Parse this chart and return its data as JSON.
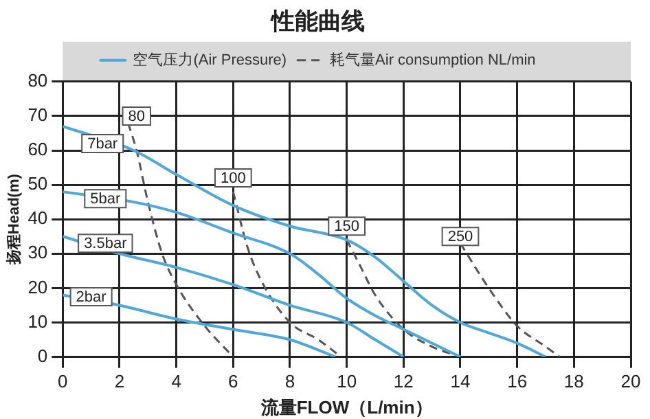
{
  "chart_data": {
    "type": "line",
    "title": "性能曲线",
    "xlabel": "流量FLOW（L/min）",
    "ylabel": "扬程Head(m)",
    "xlim": [
      0,
      20
    ],
    "xticks": [
      0,
      2,
      4,
      6,
      8,
      10,
      12,
      14,
      16,
      18,
      20
    ],
    "ylim": [
      0,
      80
    ],
    "yticks": [
      0,
      10,
      20,
      30,
      40,
      50,
      60,
      70,
      80
    ],
    "grid": true,
    "legend": "top",
    "marker": "none",
    "series": [
      {
        "name": "空气压力(Air Pressure)",
        "color": "#4fa8dc",
        "line_style": "solid",
        "x": [
          0,
          2.5,
          4,
          6,
          8,
          10,
          11,
          12,
          13,
          14,
          15,
          16,
          17
        ],
        "values": [
          67,
          60,
          53,
          44,
          38,
          34,
          29,
          22,
          15,
          10,
          7,
          4,
          0
        ]
      },
      {
        "color": "#4fa8dc",
        "line_style": "solid",
        "x": [
          0,
          2.5,
          4,
          6,
          8,
          9,
          10,
          11,
          12,
          13,
          14
        ],
        "values": [
          48,
          45,
          42,
          36,
          30,
          24,
          17,
          12,
          8,
          4,
          0
        ]
      },
      {
        "color": "#4fa8dc",
        "line_style": "solid",
        "x": [
          0,
          2,
          4,
          6,
          8,
          10,
          11,
          12
        ],
        "values": [
          35,
          30,
          26,
          21,
          15,
          10,
          5,
          0
        ]
      },
      {
        "color": "#4fa8dc",
        "line_style": "solid",
        "x": [
          0,
          2,
          4,
          6,
          8,
          9,
          9.6
        ],
        "values": [
          18,
          15,
          11,
          8,
          5,
          2,
          0
        ]
      },
      {
        "name": "耗气量Air consumption NL/min",
        "color": "#555555",
        "line_style": "dashed",
        "x": [
          2.3,
          2.6,
          3,
          3.5,
          4,
          5,
          6
        ],
        "values": [
          68,
          60,
          45,
          30,
          21,
          9,
          0
        ]
      },
      {
        "color": "#555555",
        "line_style": "dashed",
        "x": [
          6,
          6.5,
          7,
          8,
          9,
          9.8
        ],
        "values": [
          48,
          32,
          22,
          10,
          5,
          0
        ]
      },
      {
        "color": "#555555",
        "line_style": "dashed",
        "x": [
          10,
          10.5,
          11,
          12,
          13,
          14
        ],
        "values": [
          34,
          26,
          18,
          8,
          3,
          0
        ]
      },
      {
        "color": "#555555",
        "line_style": "dashed",
        "x": [
          14,
          15,
          16,
          17,
          17.5
        ],
        "values": [
          33,
          20,
          9,
          3,
          0
        ]
      }
    ],
    "annotations": [
      {
        "text": "80",
        "x": 2.6,
        "y": 70
      },
      {
        "text": "100",
        "x": 6,
        "y": 52
      },
      {
        "text": "150",
        "x": 10,
        "y": 38
      },
      {
        "text": "250",
        "x": 14,
        "y": 35
      },
      {
        "text": "7bar",
        "x": 1.4,
        "y": 62
      },
      {
        "text": "5bar",
        "x": 1.5,
        "y": 46
      },
      {
        "text": "3.5bar",
        "x": 1.5,
        "y": 33
      },
      {
        "text": "2bar",
        "x": 1.0,
        "y": 17.5
      }
    ]
  }
}
